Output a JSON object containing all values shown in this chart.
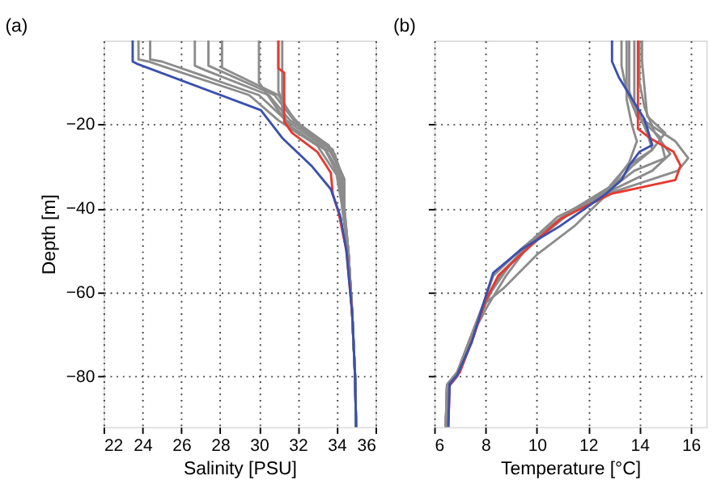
{
  "chart_data": [
    {
      "type": "line",
      "title": "(a)",
      "xlabel": "Salinity [PSU]",
      "ylabel": "Depth [m]",
      "xlim": [
        22,
        36
      ],
      "xticks": [
        22,
        24,
        26,
        28,
        30,
        32,
        34,
        36
      ],
      "ylim": [
        -92,
        0
      ],
      "yticks": [
        -20,
        -40,
        -60,
        -80
      ],
      "grid": true,
      "legend": false,
      "marker": "none",
      "line_style": "solid",
      "series": [
        {
          "color": "#8c8c8c",
          "x": [
            23.8,
            23.8,
            24.3,
            29.5,
            31.0,
            33.0,
            34.0,
            34.3,
            34.6,
            34.8,
            34.95,
            35.0
          ],
          "values": [
            0,
            -4.5,
            -5,
            -13,
            -19,
            -25,
            -32,
            -40,
            -50,
            -65,
            -80,
            -92
          ]
        },
        {
          "color": "#8c8c8c",
          "x": [
            24.4,
            24.4,
            25.0,
            30.0,
            31.4,
            33.3,
            34.1,
            34.3,
            34.6,
            34.8,
            34.95,
            35.0
          ],
          "values": [
            0,
            -4.5,
            -5,
            -13,
            -19,
            -25,
            -31,
            -40,
            -50,
            -65,
            -80,
            -92
          ]
        },
        {
          "color": "#8c8c8c",
          "x": [
            26.7,
            26.7,
            27.2,
            30.5,
            31.6,
            33.5,
            34.2,
            34.3,
            34.6,
            34.8,
            34.95,
            35.0
          ],
          "values": [
            0,
            -6,
            -7,
            -13,
            -19,
            -25,
            -31,
            -40,
            -50,
            -65,
            -80,
            -92
          ]
        },
        {
          "color": "#8c8c8c",
          "x": [
            27.4,
            27.4,
            30.8,
            31.8,
            33.6,
            34.3,
            34.3,
            34.6,
            34.8,
            34.95,
            35.0
          ],
          "values": [
            0,
            -6,
            -13,
            -19,
            -25,
            -32,
            -40,
            -50,
            -65,
            -80,
            -92
          ]
        },
        {
          "color": "#8c8c8c",
          "x": [
            28.1,
            28.1,
            31.0,
            32.0,
            33.7,
            34.4,
            34.35,
            34.6,
            34.8,
            34.95,
            35.0
          ],
          "values": [
            0,
            -6.5,
            -13,
            -20,
            -26,
            -33,
            -40,
            -50,
            -65,
            -80,
            -92
          ]
        },
        {
          "color": "#8c8c8c",
          "x": [
            30.0,
            30.0,
            30.6,
            31.5,
            33.4,
            34.2,
            34.35,
            34.6,
            34.8,
            34.95,
            35.0
          ],
          "values": [
            0,
            -10,
            -14,
            -20,
            -26,
            -33,
            -40,
            -50,
            -65,
            -80,
            -92
          ]
        },
        {
          "color": "#8c8c8c",
          "x": [
            31.0,
            31.0,
            31.3,
            32.1,
            33.8,
            34.3,
            34.4,
            34.6,
            34.8,
            34.95,
            35.0
          ],
          "values": [
            0,
            -12,
            -16,
            -20,
            -26,
            -34,
            -40,
            -50,
            -65,
            -80,
            -92
          ]
        },
        {
          "color": "#8c8c8c",
          "x": [
            31.2,
            31.2,
            31.6,
            33.9,
            34.4,
            34.4,
            34.6,
            34.8,
            34.95,
            35.0
          ],
          "values": [
            0,
            -17,
            -21,
            -27,
            -34,
            -40,
            -50,
            -65,
            -80,
            -92
          ]
        },
        {
          "color": "#e8392f",
          "x": [
            31.0,
            31.0,
            31.3,
            31.3,
            31.7,
            33.0,
            33.7,
            33.8,
            34.1,
            34.5,
            34.8
          ],
          "values": [
            0,
            -6.6,
            -7.7,
            -19.3,
            -22,
            -26.5,
            -31.5,
            -36.5,
            -41,
            -50,
            -65
          ]
        },
        {
          "color": "#3a50b0",
          "x": [
            23.5,
            23.5,
            23.7,
            30.1,
            31.2,
            32.7,
            33.7,
            34.2,
            34.5,
            34.8,
            34.95,
            35.0
          ],
          "values": [
            0,
            -5,
            -5.5,
            -16.6,
            -23.2,
            -29.8,
            -35.4,
            -42,
            -50,
            -65,
            -80,
            -92
          ]
        }
      ]
    },
    {
      "type": "line",
      "title": "(b)",
      "xlabel": "Temperature [°C]",
      "xlim": [
        6,
        16.6
      ],
      "xticks": [
        6,
        8,
        10,
        12,
        14,
        16
      ],
      "ylim": [
        -92,
        0
      ],
      "yticks": [
        -20,
        -40,
        -60,
        -80
      ],
      "tick_labels": "x",
      "grid": true,
      "legend": false,
      "marker": "none",
      "line_style": "solid",
      "series": [
        {
          "color": "#8c8c8c",
          "x": [
            13.3,
            13.3,
            13.5,
            13.9,
            15.4,
            15.9,
            15.5,
            13.0,
            11.5,
            9.8,
            8.5,
            8.0,
            7.5,
            6.9,
            6.5,
            6.45
          ],
          "values": [
            0,
            -6,
            -12,
            -18,
            -24,
            -28,
            -31,
            -36,
            -40,
            -48,
            -56,
            -62,
            -71,
            -80,
            -83,
            -92
          ]
        },
        {
          "color": "#8c8c8c",
          "x": [
            13.6,
            13.6,
            13.9,
            14.8,
            15.0,
            13.8,
            12.5,
            11.0,
            9.5,
            8.3,
            7.9,
            7.4,
            6.9,
            6.5,
            6.45
          ],
          "values": [
            0,
            -12,
            -18,
            -23,
            -28,
            -31,
            -37,
            -42,
            -49,
            -56,
            -63,
            -71,
            -79,
            -82,
            -92
          ]
        },
        {
          "color": "#8c8c8c",
          "x": [
            13.8,
            13.8,
            14.3,
            14.5,
            13.5,
            12.8,
            11.2,
            9.7,
            8.6,
            7.9,
            7.4,
            6.9,
            6.5,
            6.45
          ],
          "values": [
            0,
            -15,
            -22,
            -26,
            -30,
            -35,
            -41,
            -48,
            -56,
            -63,
            -71,
            -79,
            -82,
            -92
          ]
        },
        {
          "color": "#8c8c8c",
          "x": [
            14.0,
            14.0,
            14.2,
            14.6,
            15.2,
            14.5,
            12.8,
            10.8,
            9.9,
            8.8,
            8.1,
            7.4,
            6.9,
            6.5,
            6.45
          ],
          "values": [
            0,
            -10,
            -16,
            -22,
            -27,
            -31,
            -36,
            -42,
            -47,
            -56,
            -63,
            -71,
            -79,
            -82,
            -92
          ]
        },
        {
          "color": "#8c8c8c",
          "x": [
            13.5,
            13.5,
            13.7,
            13.9,
            13.6,
            12.9,
            11.5,
            10.5,
            9.0,
            8.2,
            7.4,
            6.9,
            6.5,
            6.45
          ],
          "values": [
            0,
            -14,
            -20,
            -24,
            -29,
            -35,
            -40,
            -45,
            -53,
            -60,
            -71,
            -79,
            -82,
            -92
          ]
        },
        {
          "color": "#8c8c8c",
          "x": [
            14.1,
            14.1,
            14.3,
            15.0,
            14.5,
            13.7,
            12.5,
            11.5,
            10.0,
            8.7,
            7.9,
            7.4,
            6.9,
            6.5,
            6.45
          ],
          "values": [
            0,
            -5,
            -18,
            -22,
            -26,
            -30,
            -38,
            -44,
            -51,
            -59,
            -63,
            -71,
            -79,
            -82,
            -92
          ]
        },
        {
          "color": "#e8392f",
          "x": [
            13.94,
            13.94,
            14.4,
            15.33,
            15.6,
            15.4,
            12.9,
            11.8,
            10.9,
            9.6,
            8.5,
            8.0,
            7.5,
            7.0,
            6.6,
            6.55
          ],
          "values": [
            0,
            -21,
            -23.2,
            -26.5,
            -29.8,
            -33.2,
            -36.5,
            -39.8,
            -42.6,
            -49.7,
            -56,
            -62,
            -71,
            -79,
            -82,
            -92
          ]
        },
        {
          "color": "#3a50b0",
          "x": [
            12.93,
            12.93,
            13.2,
            14.2,
            14.5,
            14.0,
            13.6,
            13.3,
            12.7,
            10.9,
            9.4,
            8.3,
            7.9,
            7.46,
            6.9,
            6.6,
            6.55
          ],
          "values": [
            0,
            -5,
            -8.8,
            -18.8,
            -24.9,
            -26.5,
            -29.8,
            -33.2,
            -36.5,
            -44.2,
            -49.7,
            -55.3,
            -63,
            -71.9,
            -79.6,
            -81.8,
            -92
          ]
        }
      ]
    }
  ]
}
